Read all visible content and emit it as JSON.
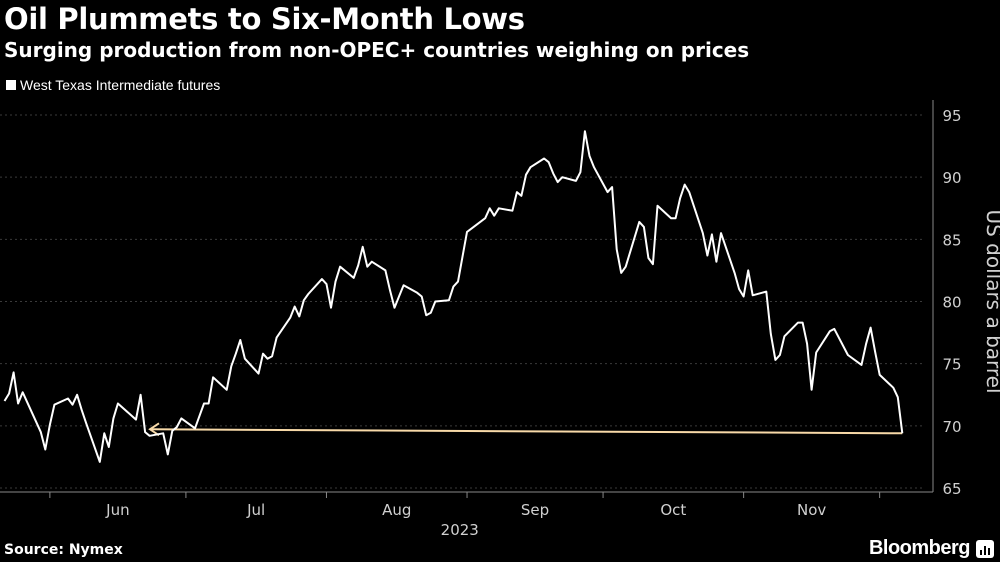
{
  "header": {
    "title": "Oil Plummets to Six-Month Lows",
    "subtitle": "Surging production from non-OPEC+ countries weighing on prices"
  },
  "footer": {
    "source": "Source: Nymex",
    "brand": "Bloomberg"
  },
  "colors": {
    "background": "#000000",
    "line": "#ffffff",
    "arrow": "#f7d9a8",
    "grid": "#3a3a3a"
  },
  "chart_data": {
    "type": "line",
    "title": "Oil Plummets to Six-Month Lows",
    "subtitle": "Surging production from non-OPEC+ countries weighing on prices",
    "ylabel": "US dollars a barrel",
    "x_year_label": "2023",
    "ylim": [
      65,
      95
    ],
    "yticks": [
      65,
      70,
      75,
      80,
      85,
      90,
      95
    ],
    "x_month_labels": [
      "Jun",
      "Jul",
      "Aug",
      "Sep",
      "Oct",
      "Nov"
    ],
    "grid": true,
    "legend_position": "top-left",
    "annotation": "arrow from latest close back to the June low level",
    "series": [
      {
        "name": "West Texas Intermediate futures",
        "x": [
          "2023-05-22",
          "2023-05-23",
          "2023-05-24",
          "2023-05-25",
          "2023-05-26",
          "2023-05-30",
          "2023-05-31",
          "2023-06-01",
          "2023-06-02",
          "2023-06-05",
          "2023-06-06",
          "2023-06-07",
          "2023-06-08",
          "2023-06-09",
          "2023-06-12",
          "2023-06-13",
          "2023-06-14",
          "2023-06-15",
          "2023-06-16",
          "2023-06-20",
          "2023-06-21",
          "2023-06-22",
          "2023-06-23",
          "2023-06-26",
          "2023-06-27",
          "2023-06-28",
          "2023-06-29",
          "2023-06-30",
          "2023-07-03",
          "2023-07-05",
          "2023-07-06",
          "2023-07-07",
          "2023-07-10",
          "2023-07-11",
          "2023-07-12",
          "2023-07-13",
          "2023-07-14",
          "2023-07-17",
          "2023-07-18",
          "2023-07-19",
          "2023-07-20",
          "2023-07-21",
          "2023-07-24",
          "2023-07-25",
          "2023-07-26",
          "2023-07-27",
          "2023-07-28",
          "2023-07-31",
          "2023-08-01",
          "2023-08-02",
          "2023-08-03",
          "2023-08-04",
          "2023-08-07",
          "2023-08-08",
          "2023-08-09",
          "2023-08-10",
          "2023-08-11",
          "2023-08-14",
          "2023-08-15",
          "2023-08-16",
          "2023-08-17",
          "2023-08-18",
          "2023-08-21",
          "2023-08-22",
          "2023-08-23",
          "2023-08-24",
          "2023-08-25",
          "2023-08-28",
          "2023-08-29",
          "2023-08-30",
          "2023-08-31",
          "2023-09-01",
          "2023-09-05",
          "2023-09-06",
          "2023-09-07",
          "2023-09-08",
          "2023-09-11",
          "2023-09-12",
          "2023-09-13",
          "2023-09-14",
          "2023-09-15",
          "2023-09-18",
          "2023-09-19",
          "2023-09-20",
          "2023-09-21",
          "2023-09-22",
          "2023-09-25",
          "2023-09-26",
          "2023-09-27",
          "2023-09-28",
          "2023-09-29",
          "2023-10-02",
          "2023-10-03",
          "2023-10-04",
          "2023-10-05",
          "2023-10-06",
          "2023-10-09",
          "2023-10-10",
          "2023-10-11",
          "2023-10-12",
          "2023-10-13",
          "2023-10-16",
          "2023-10-17",
          "2023-10-18",
          "2023-10-19",
          "2023-10-20",
          "2023-10-23",
          "2023-10-24",
          "2023-10-25",
          "2023-10-26",
          "2023-10-27",
          "2023-10-30",
          "2023-10-31",
          "2023-11-01",
          "2023-11-02",
          "2023-11-03",
          "2023-11-06",
          "2023-11-07",
          "2023-11-08",
          "2023-11-09",
          "2023-11-10",
          "2023-11-13",
          "2023-11-14",
          "2023-11-15",
          "2023-11-16",
          "2023-11-17",
          "2023-11-20",
          "2023-11-21",
          "2023-11-22",
          "2023-11-24",
          "2023-11-27",
          "2023-11-28",
          "2023-11-29",
          "2023-11-30",
          "2023-12-01",
          "2023-12-04",
          "2023-12-05",
          "2023-12-06"
        ],
        "values": [
          72.0,
          72.6,
          74.3,
          71.8,
          72.7,
          69.5,
          68.1,
          70.1,
          71.7,
          72.2,
          71.7,
          72.5,
          71.3,
          70.2,
          67.1,
          69.4,
          68.3,
          70.6,
          71.8,
          70.5,
          72.5,
          69.5,
          69.2,
          69.4,
          67.7,
          69.6,
          69.9,
          70.6,
          69.8,
          71.8,
          71.8,
          73.9,
          72.9,
          74.8,
          75.8,
          76.9,
          75.4,
          74.2,
          75.8,
          75.4,
          75.6,
          77.1,
          78.7,
          79.6,
          78.8,
          80.1,
          80.6,
          81.8,
          81.4,
          79.5,
          81.6,
          82.8,
          81.9,
          82.9,
          84.4,
          82.8,
          83.2,
          82.5,
          80.9,
          79.5,
          80.4,
          81.3,
          80.7,
          80.4,
          78.9,
          79.1,
          80.0,
          80.1,
          81.2,
          81.6,
          83.6,
          85.6,
          86.7,
          87.5,
          86.9,
          87.5,
          87.3,
          88.8,
          88.5,
          90.2,
          90.8,
          91.5,
          91.2,
          90.3,
          89.6,
          90.0,
          89.7,
          90.4,
          93.7,
          91.7,
          90.8,
          88.8,
          89.2,
          84.2,
          82.3,
          82.8,
          86.4,
          86.0,
          83.5,
          83.0,
          87.7,
          86.7,
          86.7,
          88.3,
          89.4,
          88.8,
          85.5,
          83.7,
          85.4,
          83.2,
          85.5,
          82.3,
          81.0,
          80.4,
          82.5,
          80.5,
          80.8,
          77.4,
          75.3,
          75.7,
          77.2,
          78.3,
          78.3,
          76.6,
          72.9,
          75.9,
          77.6,
          77.8,
          77.1,
          75.7,
          74.9,
          76.6,
          77.9,
          75.96,
          74.1,
          73.07,
          72.3,
          69.4
        ]
      }
    ]
  }
}
